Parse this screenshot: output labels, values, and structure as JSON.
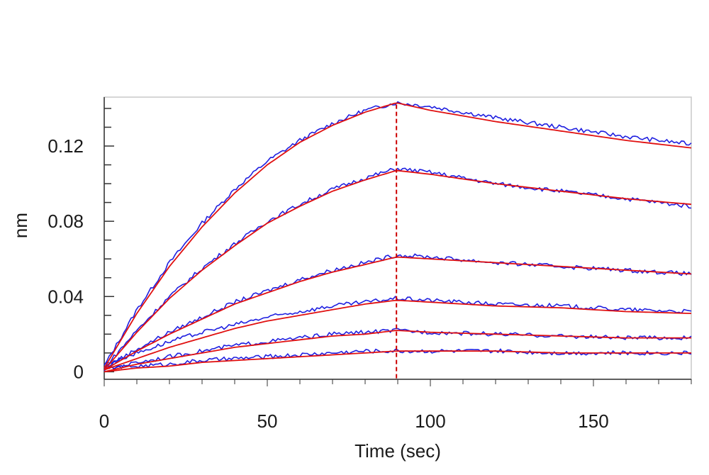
{
  "chart_data": {
    "type": "line",
    "title": "",
    "xlabel": "Time (sec)",
    "ylabel": "nm",
    "xlim": [
      0,
      180
    ],
    "ylim": [
      -0.004,
      0.146
    ],
    "x_ticks": [
      0,
      50,
      100,
      150
    ],
    "x_tick_labels": [
      "0",
      "50",
      "100",
      "150"
    ],
    "y_ticks": [
      0,
      0.04,
      0.08,
      0.12
    ],
    "y_tick_labels": [
      "0",
      "0.04",
      "0.08",
      "0.12"
    ],
    "grid": false,
    "legend": "none",
    "association_end_x": 89.6,
    "colors": {
      "measured": "#1f1fe0",
      "fit": "#e01010",
      "marker": "#cc0000",
      "frame": "#c8c8c8",
      "axis": "#333333"
    },
    "series": [
      {
        "x": [
          0,
          10,
          20,
          30,
          40,
          50,
          60,
          70,
          80,
          89.6,
          100,
          120,
          140,
          160,
          180
        ],
        "measured": [
          0.003,
          0.033,
          0.058,
          0.079,
          0.097,
          0.112,
          0.123,
          0.132,
          0.139,
          0.143,
          0.141,
          0.135,
          0.13,
          0.125,
          0.121
        ],
        "fit": [
          0.002,
          0.031,
          0.056,
          0.077,
          0.095,
          0.11,
          0.122,
          0.131,
          0.138,
          0.143,
          0.139,
          0.133,
          0.128,
          0.123,
          0.119
        ]
      },
      {
        "x": [
          0,
          10,
          20,
          30,
          40,
          50,
          60,
          70,
          80,
          89.6,
          100,
          120,
          140,
          160,
          180
        ],
        "measured": [
          0.002,
          0.022,
          0.04,
          0.055,
          0.068,
          0.08,
          0.089,
          0.097,
          0.103,
          0.108,
          0.106,
          0.1,
          0.096,
          0.092,
          0.088
        ],
        "fit": [
          0.001,
          0.021,
          0.039,
          0.054,
          0.067,
          0.079,
          0.088,
          0.096,
          0.102,
          0.107,
          0.105,
          0.1,
          0.096,
          0.092,
          0.089
        ]
      },
      {
        "x": [
          0,
          10,
          20,
          30,
          40,
          50,
          60,
          70,
          80,
          89.6,
          100,
          120,
          140,
          160,
          180
        ],
        "measured": [
          0.002,
          0.012,
          0.021,
          0.029,
          0.037,
          0.043,
          0.049,
          0.054,
          0.058,
          0.062,
          0.061,
          0.058,
          0.056,
          0.054,
          0.052
        ],
        "fit": [
          0.001,
          0.011,
          0.02,
          0.028,
          0.036,
          0.042,
          0.048,
          0.053,
          0.057,
          0.061,
          0.06,
          0.058,
          0.056,
          0.054,
          0.052
        ]
      },
      {
        "x": [
          0,
          10,
          20,
          30,
          40,
          50,
          60,
          70,
          80,
          89.6,
          100,
          120,
          140,
          160,
          180
        ],
        "measured": [
          0.004,
          0.01,
          0.016,
          0.021,
          0.025,
          0.029,
          0.032,
          0.035,
          0.037,
          0.039,
          0.038,
          0.036,
          0.035,
          0.033,
          0.032
        ],
        "fit": [
          0.001,
          0.007,
          0.013,
          0.018,
          0.023,
          0.027,
          0.03,
          0.033,
          0.036,
          0.038,
          0.037,
          0.035,
          0.034,
          0.032,
          0.031
        ]
      },
      {
        "x": [
          0,
          10,
          20,
          30,
          40,
          50,
          60,
          70,
          80,
          89.6,
          100,
          120,
          140,
          160,
          180
        ],
        "measured": [
          0.001,
          0.005,
          0.008,
          0.011,
          0.014,
          0.016,
          0.018,
          0.02,
          0.021,
          0.022,
          0.021,
          0.02,
          0.019,
          0.018,
          0.018
        ],
        "fit": [
          0.0,
          0.004,
          0.007,
          0.01,
          0.013,
          0.015,
          0.017,
          0.019,
          0.02,
          0.022,
          0.021,
          0.02,
          0.019,
          0.018,
          0.018
        ]
      },
      {
        "x": [
          0,
          10,
          20,
          30,
          40,
          50,
          60,
          70,
          80,
          89.6,
          100,
          120,
          140,
          160,
          180
        ],
        "measured": [
          0.002,
          0.003,
          0.004,
          0.006,
          0.007,
          0.008,
          0.009,
          0.01,
          0.011,
          0.011,
          0.011,
          0.011,
          0.01,
          0.01,
          0.01
        ],
        "fit": [
          0.0,
          0.002,
          0.003,
          0.005,
          0.006,
          0.007,
          0.008,
          0.009,
          0.01,
          0.011,
          0.011,
          0.011,
          0.01,
          0.01,
          0.01
        ]
      }
    ]
  }
}
